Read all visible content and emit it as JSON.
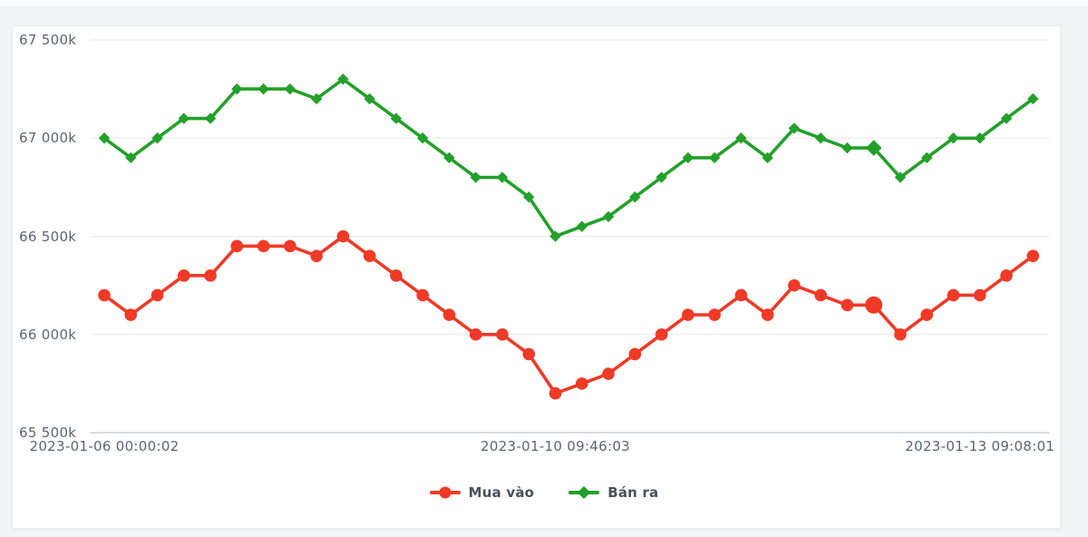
{
  "chart_data": {
    "type": "line",
    "title": "",
    "xlabel": "",
    "ylabel": "",
    "grid": true,
    "legend_position": "bottom",
    "ylim": [
      65500,
      67500
    ],
    "y_ticks": [
      {
        "value": 67500,
        "label": "67 500k"
      },
      {
        "value": 67000,
        "label": "67 000k"
      },
      {
        "value": 66500,
        "label": "66 500k"
      },
      {
        "value": 66000,
        "label": "66 000k"
      },
      {
        "value": 65500,
        "label": "65 500k"
      }
    ],
    "x_ticks": [
      {
        "index": 0,
        "label": "2023-01-06 00:00:02"
      },
      {
        "index": 17,
        "label": "2023-01-10 09:46:03"
      },
      {
        "index": 33,
        "label": "2023-01-13 09:08:01"
      }
    ],
    "n_points": 36,
    "highlight_index": 29,
    "series": [
      {
        "name": "Mua vào",
        "color": "#ee3a27",
        "marker": "circle",
        "values": [
          66200,
          66100,
          66200,
          66300,
          66300,
          66450,
          66450,
          66450,
          66400,
          66500,
          66400,
          66300,
          66200,
          66100,
          66000,
          66000,
          65900,
          65700,
          65750,
          65800,
          65900,
          66000,
          66100,
          66100,
          66200,
          66100,
          66250,
          66200,
          66150,
          66150,
          66000,
          66100,
          66200,
          66200,
          66300,
          66400
        ]
      },
      {
        "name": "Bán ra",
        "color": "#23a02a",
        "marker": "diamond",
        "values": [
          67000,
          66900,
          67000,
          67100,
          67100,
          67250,
          67250,
          67250,
          67200,
          67300,
          67200,
          67100,
          67000,
          66900,
          66800,
          66800,
          66700,
          66500,
          66550,
          66600,
          66700,
          66800,
          66900,
          66900,
          67000,
          66900,
          67050,
          67000,
          66950,
          66950,
          66800,
          66900,
          67000,
          67000,
          67100,
          67200
        ]
      }
    ],
    "gridline_color": "#e9eaec",
    "axis_line_color": "#c9cfda",
    "axis_text_color": "#5d6573"
  }
}
